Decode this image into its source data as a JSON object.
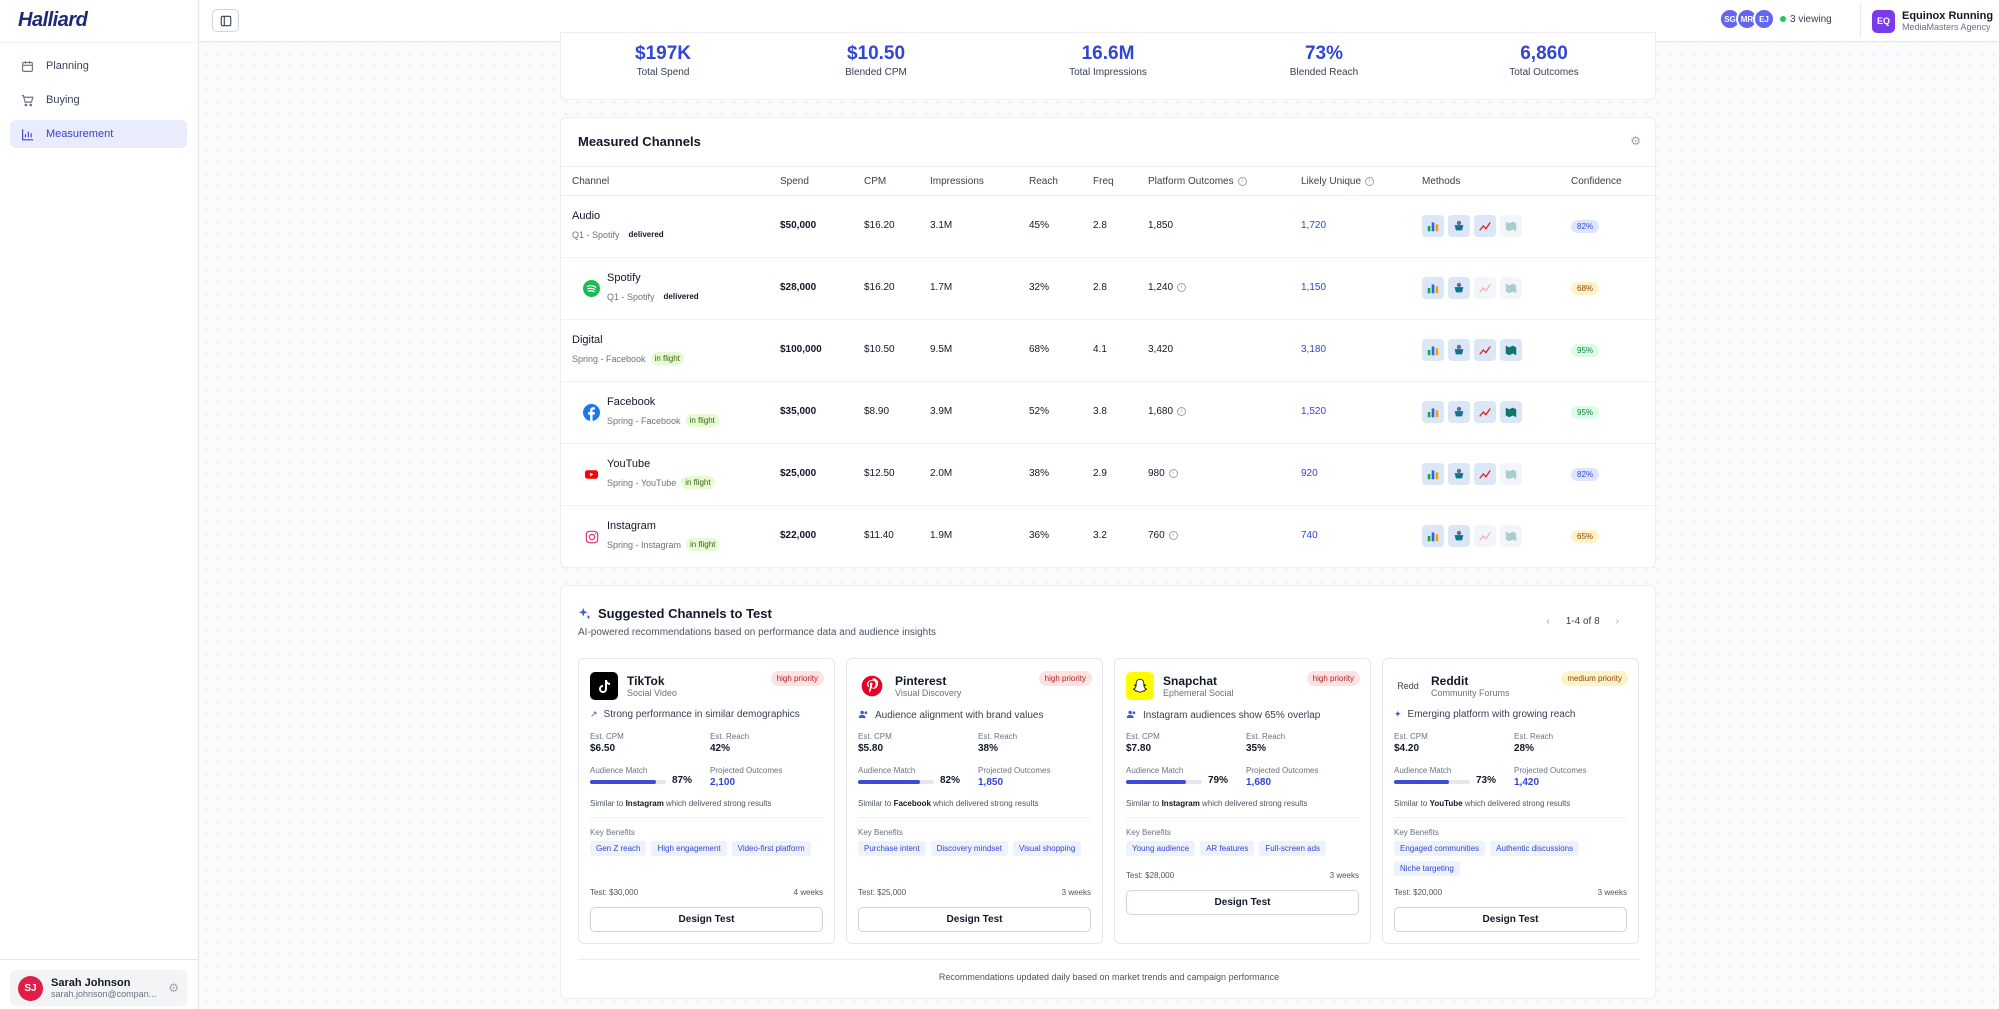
{
  "app": {
    "brand": "Halliard"
  },
  "sidebar": {
    "items": [
      {
        "label": "Planning",
        "icon": "calendar-icon",
        "active": false
      },
      {
        "label": "Buying",
        "icon": "cart-icon",
        "active": false
      },
      {
        "label": "Measurement",
        "icon": "bar-chart-icon",
        "active": true
      }
    ],
    "user": {
      "initials": "SJ",
      "name": "Sarah Johnson",
      "email": "sarah.johnson@compan..."
    }
  },
  "topbar": {
    "viewers": [
      "SG",
      "MR",
      "EJ"
    ],
    "viewing_label": "3 viewing",
    "account": {
      "initials": "EQ",
      "name": "Equinox Running",
      "agency": "MediaMasters Agency"
    }
  },
  "stats": [
    {
      "value": "$197K",
      "label": "Total Spend"
    },
    {
      "value": "$10.50",
      "label": "Blended CPM"
    },
    {
      "value": "16.6M",
      "label": "Total Impressions"
    },
    {
      "value": "73%",
      "label": "Blended Reach"
    },
    {
      "value": "6,860",
      "label": "Total Outcomes"
    }
  ],
  "channels": {
    "title": "Measured Channels",
    "headers": {
      "channel": "Channel",
      "spend": "Spend",
      "cpm": "CPM",
      "impressions": "Impressions",
      "reach": "Reach",
      "freq": "Freq",
      "platform": "Platform Outcomes",
      "unique": "Likely Unique",
      "methods": "Methods",
      "confidence": "Confidence"
    },
    "rows": [
      {
        "name": "Audio",
        "sub": "Q1 - Spotify",
        "status": "delivered",
        "spend": "$50,000",
        "cpm": "$16.20",
        "impressions": "3.1M",
        "reach": "45%",
        "freq": "2.8",
        "platform": "1,850",
        "unique": "1,720",
        "confidence": "82%",
        "conf_tone": "blue",
        "child": false,
        "icon": "",
        "methods": [
          1,
          1,
          1,
          0
        ]
      },
      {
        "name": "Spotify",
        "sub": "Q1 - Spotify",
        "status": "delivered",
        "spend": "$28,000",
        "cpm": "$16.20",
        "impressions": "1.7M",
        "reach": "32%",
        "freq": "2.8",
        "platform": "1,240",
        "unique": "1,150",
        "confidence": "68%",
        "conf_tone": "yel",
        "child": true,
        "icon": "spotify",
        "methods": [
          1,
          1,
          0,
          0
        ]
      },
      {
        "name": "Digital",
        "sub": "Spring - Facebook",
        "status": "in flight",
        "spend": "$100,000",
        "cpm": "$10.50",
        "impressions": "9.5M",
        "reach": "68%",
        "freq": "4.1",
        "platform": "3,420",
        "unique": "3,180",
        "confidence": "95%",
        "conf_tone": "grn",
        "child": false,
        "icon": "",
        "methods": [
          1,
          1,
          1,
          1
        ]
      },
      {
        "name": "Facebook",
        "sub": "Spring - Facebook",
        "status": "in flight",
        "spend": "$35,000",
        "cpm": "$8.90",
        "impressions": "3.9M",
        "reach": "52%",
        "freq": "3.8",
        "platform": "1,680",
        "unique": "1,520",
        "confidence": "95%",
        "conf_tone": "grn",
        "child": true,
        "icon": "facebook",
        "methods": [
          1,
          1,
          1,
          1
        ]
      },
      {
        "name": "YouTube",
        "sub": "Spring - YouTube",
        "status": "in flight",
        "spend": "$25,000",
        "cpm": "$12.50",
        "impressions": "2.0M",
        "reach": "38%",
        "freq": "2.9",
        "platform": "980",
        "unique": "920",
        "confidence": "82%",
        "conf_tone": "blue",
        "child": true,
        "icon": "youtube",
        "methods": [
          1,
          1,
          1,
          0
        ]
      },
      {
        "name": "Instagram",
        "sub": "Spring - Instagram",
        "status": "in flight",
        "spend": "$22,000",
        "cpm": "$11.40",
        "impressions": "1.9M",
        "reach": "36%",
        "freq": "3.2",
        "platform": "760",
        "unique": "740",
        "confidence": "65%",
        "conf_tone": "yel",
        "child": true,
        "icon": "instagram",
        "methods": [
          1,
          1,
          0,
          0
        ]
      }
    ]
  },
  "suggested": {
    "title": "Suggested Channels to Test",
    "subtitle": "AI-powered recommendations based on performance data and audience insights",
    "pager": "1-4 of 8",
    "labels": {
      "cpm": "Est. CPM",
      "reach": "Est. Reach",
      "match": "Audience Match",
      "outcomes": "Projected Outcomes",
      "benefits": "Key Benefits",
      "button": "Design Test",
      "similar_pre": "Similar to",
      "similar_post": "which delivered strong results"
    },
    "cards": [
      {
        "name": "TikTok",
        "type": "Social Video",
        "priority": "high priority",
        "prio_tone": "high",
        "reason": "Strong performance in similar demographics",
        "cpm": "$6.50",
        "reach": "42%",
        "match": "87%",
        "match_value": 87,
        "outcomes": "2,100",
        "similar": "Instagram",
        "tags": [
          "Gen Z reach",
          "High engagement",
          "Video-first platform"
        ],
        "test": "Test: $30,000",
        "duration": "4 weeks",
        "logo": "tiktok"
      },
      {
        "name": "Pinterest",
        "type": "Visual Discovery",
        "priority": "high priority",
        "prio_tone": "high",
        "reason": "Audience alignment with brand values",
        "cpm": "$5.80",
        "reach": "38%",
        "match": "82%",
        "match_value": 82,
        "outcomes": "1,850",
        "similar": "Facebook",
        "tags": [
          "Purchase intent",
          "Discovery mindset",
          "Visual shopping"
        ],
        "test": "Test: $25,000",
        "duration": "3 weeks",
        "logo": "pinterest"
      },
      {
        "name": "Snapchat",
        "type": "Ephemeral Social",
        "priority": "high priority",
        "prio_tone": "high",
        "reason": "Instagram audiences show 65% overlap",
        "cpm": "$7.80",
        "reach": "35%",
        "match": "79%",
        "match_value": 79,
        "outcomes": "1,680",
        "similar": "Instagram",
        "tags": [
          "Young audience",
          "AR features",
          "Full-screen ads"
        ],
        "test": "Test: $28,000",
        "duration": "3 weeks",
        "logo": "snapchat"
      },
      {
        "name": "Reddit",
        "type": "Community Forums",
        "priority": "medium priority",
        "prio_tone": "med",
        "reason": "Emerging platform with growing reach",
        "cpm": "$4.20",
        "reach": "28%",
        "match": "73%",
        "match_value": 73,
        "outcomes": "1,420",
        "similar": "YouTube",
        "tags": [
          "Engaged communities",
          "Authentic discussions",
          "Niche targeting"
        ],
        "test": "Test: $20,000",
        "duration": "3 weeks",
        "logo": "reddit"
      }
    ],
    "footer": "Recommendations updated daily based on market trends and campaign performance"
  }
}
